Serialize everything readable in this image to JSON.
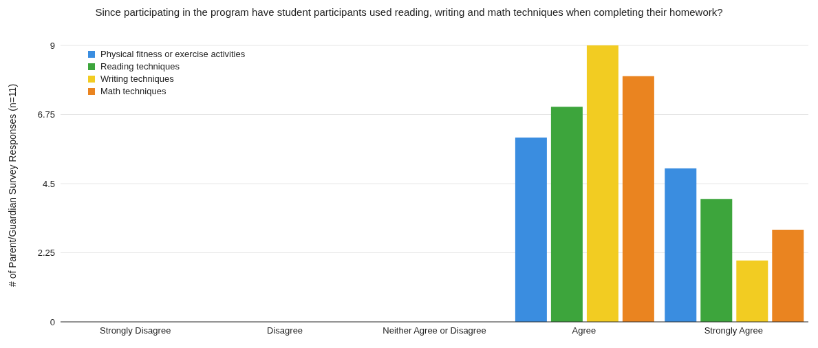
{
  "chart_data": {
    "type": "bar",
    "title": "Since participating in the program have student participants used reading, writing and math techniques when completing their homework?",
    "ylabel": "# of Parent/Guardian Survey Responses (n=11)",
    "categories": [
      "Strongly Disagree",
      "Disagree",
      "Neither Agree or Disagree",
      "Agree",
      "Strongly Agree"
    ],
    "series": [
      {
        "name": "Physical fitness or exercise activities",
        "color": "#3a8de0",
        "values": [
          0,
          0,
          0,
          6,
          5
        ]
      },
      {
        "name": "Reading techniques",
        "color": "#3da53c",
        "values": [
          0,
          0,
          0,
          7,
          4
        ]
      },
      {
        "name": "Writing techniques",
        "color": "#f2cc22",
        "values": [
          0,
          0,
          0,
          9,
          2
        ]
      },
      {
        "name": "Math techniques",
        "color": "#ea8420",
        "values": [
          0,
          0,
          0,
          8,
          3
        ]
      }
    ],
    "ylim": [
      0,
      9
    ],
    "yticks": [
      0,
      2.25,
      4.5,
      6.75,
      9
    ],
    "grid": "y",
    "legend": "top left"
  }
}
